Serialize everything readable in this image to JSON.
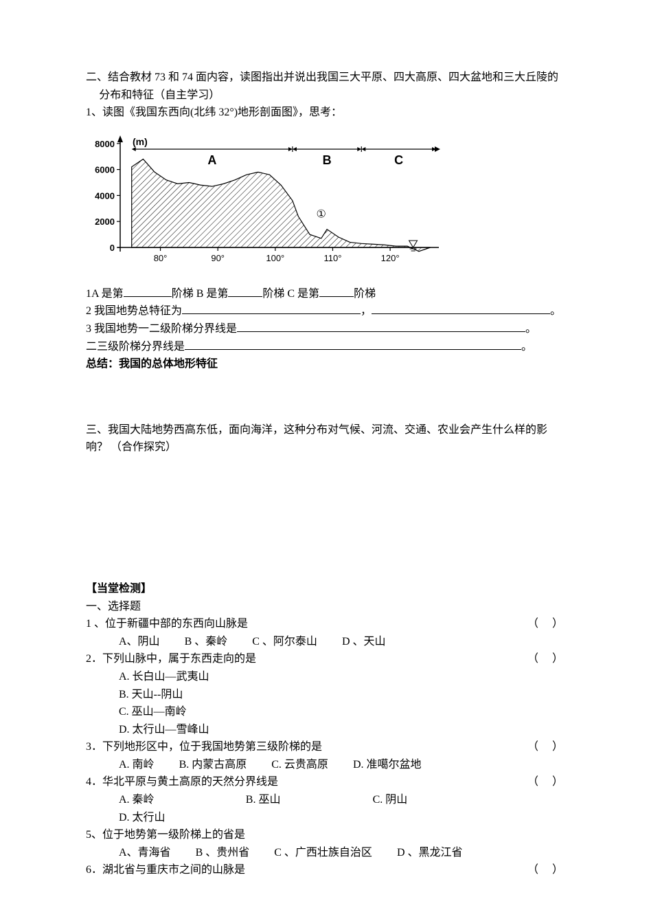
{
  "section2": {
    "heading": "二、结合教材 73 和 74 面内容，读图指出并说出我国三大平原、四大高原、四大盆地和三大丘陵的分布和特征（自主学习）",
    "q1_intro": "1、读图《我国东西向(北纬 32°)地形剖面图》，思考：",
    "q1A_pre": "1A 是第",
    "q1A_mid1": "阶梯 B 是第",
    "q1A_mid2": "阶梯 C 是第",
    "q1A_end": "阶梯",
    "q2_pre": "2 我国地势总特征为",
    "q3_pre": "3 我国地势一二级阶梯分界线是",
    "q3b_pre": "二三级阶梯分界线是",
    "period": "。",
    "comma": "，",
    "summary": "总结：我国的总体地形特征"
  },
  "chart": {
    "type": "area-profile",
    "y_label_unit": "(m)",
    "y_ticks": [
      0,
      2000,
      4000,
      6000,
      8000
    ],
    "x_ticks": [
      "80°",
      "90°",
      "100°",
      "110°",
      "120°"
    ],
    "markers": [
      "A",
      "B",
      "C"
    ],
    "circled": "①",
    "axis_color": "#000000",
    "fill_color": "#ffffff",
    "hatch_spacing": 6,
    "line_width": 1.2,
    "profile_points": [
      [
        75,
        6200
      ],
      [
        77,
        6800
      ],
      [
        79,
        5800
      ],
      [
        81,
        5200
      ],
      [
        83,
        4900
      ],
      [
        85,
        5000
      ],
      [
        87,
        4800
      ],
      [
        89,
        4700
      ],
      [
        91,
        4900
      ],
      [
        93,
        5200
      ],
      [
        95,
        5600
      ],
      [
        97,
        5800
      ],
      [
        99,
        5600
      ],
      [
        101,
        4800
      ],
      [
        103,
        3600
      ],
      [
        104,
        2400
      ],
      [
        106,
        1000
      ],
      [
        108,
        700
      ],
      [
        109,
        1400
      ],
      [
        111,
        800
      ],
      [
        113,
        400
      ],
      [
        115,
        300
      ],
      [
        117,
        250
      ],
      [
        119,
        200
      ],
      [
        121,
        100
      ],
      [
        123,
        100
      ],
      [
        125,
        -300
      ],
      [
        127,
        0
      ]
    ],
    "x_range": [
      73,
      128
    ],
    "y_range": [
      -600,
      8200
    ]
  },
  "section3": {
    "heading": "三、我国大陆地势西高东低，面向海洋，这种分布对气候、河流、交通、农业会产生什么样的影响？  （合作探究）"
  },
  "quiz": {
    "title": "【当堂检测】",
    "sub": "一、选择题",
    "q1": {
      "stem": "1 、位于新疆中部的东西向山脉是",
      "opts": [
        "A、阴山",
        "B 、秦岭",
        "C 、阿尔泰山",
        "D 、天山"
      ]
    },
    "q2": {
      "stem": "2．下列山脉中，属于东西走向的是",
      "opts": [
        "A. 长白山—武夷山",
        "B. 天山--阴山",
        "C. 巫山—南岭",
        "D. 太行山—雪峰山"
      ]
    },
    "q3": {
      "stem": "3．下列地形区中，位于我国地势第三级阶梯的是",
      "opts": [
        "A. 南岭",
        "B. 内蒙古高原",
        "C. 云贵高原",
        "D. 准噶尔盆地"
      ]
    },
    "q4": {
      "stem": "4．华北平原与黄土高原的天然分界线是",
      "opts": [
        "A. 秦岭",
        "B. 巫山",
        "C. 阴山",
        "D. 太行山"
      ]
    },
    "q5": {
      "stem": "5、位于地势第一级阶梯上的省是",
      "opts": [
        "A、青海省",
        "B 、贵州省",
        "C 、广西壮族自治区",
        "D 、黑龙江省"
      ]
    },
    "q6": {
      "stem": "6．湖北省与重庆市之间的山脉是"
    },
    "paren": "（     ）"
  }
}
